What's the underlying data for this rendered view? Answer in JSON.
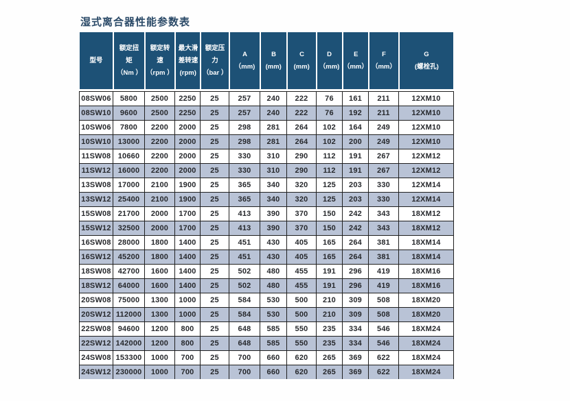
{
  "title": "湿式离合器性能参数表",
  "colors": {
    "header_bg": "#1d5176",
    "row_alt_bg": "#b9c3d6",
    "border": "#1f1f1f",
    "title_text": "#2b4a68",
    "header_text": "#ffffff"
  },
  "table": {
    "columns": [
      {
        "key": "model",
        "lines": [
          "型号"
        ]
      },
      {
        "key": "rated-torque",
        "lines": [
          "额定扭",
          "矩",
          "（Nm ）"
        ]
      },
      {
        "key": "rated-speed",
        "lines": [
          "额定转",
          "速",
          "（rpm ）"
        ]
      },
      {
        "key": "max-slip-speed",
        "lines": [
          "最大滑",
          "差转速",
          "(rpm)"
        ]
      },
      {
        "key": "rated-pressure",
        "lines": [
          "额定压",
          "力",
          "（bar ）"
        ]
      },
      {
        "key": "dim-a",
        "lines": [
          "A",
          "（mm)"
        ]
      },
      {
        "key": "dim-b",
        "lines": [
          "B",
          "(mm)"
        ]
      },
      {
        "key": "dim-c",
        "lines": [
          "C",
          "(mm)"
        ]
      },
      {
        "key": "dim-d",
        "lines": [
          "D",
          "（mm)"
        ]
      },
      {
        "key": "dim-e",
        "lines": [
          "E",
          "（mm）"
        ]
      },
      {
        "key": "dim-f",
        "lines": [
          "F",
          "（mm）"
        ]
      },
      {
        "key": "dim-g",
        "lines": [
          "G",
          "(螺栓孔)"
        ]
      }
    ],
    "rows": [
      [
        "08SW06",
        "5800",
        "2500",
        "2250",
        "25",
        "257",
        "240",
        "222",
        "76",
        "161",
        "211",
        "12XM10"
      ],
      [
        "08SW10",
        "9600",
        "2500",
        "2250",
        "25",
        "257",
        "240",
        "222",
        "76",
        "192",
        "211",
        "12XM10"
      ],
      [
        "10SW06",
        "7800",
        "2200",
        "2000",
        "25",
        "298",
        "281",
        "264",
        "102",
        "164",
        "249",
        "12XM10"
      ],
      [
        "10SW10",
        "13000",
        "2200",
        "2000",
        "25",
        "298",
        "281",
        "264",
        "102",
        "200",
        "249",
        "12XM10"
      ],
      [
        "11SW08",
        "10660",
        "2200",
        "2000",
        "25",
        "330",
        "310",
        "290",
        "112",
        "191",
        "267",
        "12XM12"
      ],
      [
        "11SW12",
        "16000",
        "2200",
        "2000",
        "25",
        "330",
        "310",
        "290",
        "112",
        "191",
        "267",
        "12XM12"
      ],
      [
        "13SW08",
        "17000",
        "2100",
        "1900",
        "25",
        "365",
        "340",
        "320",
        "125",
        "203",
        "330",
        "12XM14"
      ],
      [
        "13SW12",
        "25400",
        "2100",
        "1900",
        "25",
        "365",
        "340",
        "320",
        "125",
        "203",
        "330",
        "12XM14"
      ],
      [
        "15SW08",
        "21700",
        "2000",
        "1700",
        "25",
        "413",
        "390",
        "370",
        "150",
        "242",
        "343",
        "18XM12"
      ],
      [
        "15SW12",
        "32500",
        "2000",
        "1700",
        "25",
        "413",
        "390",
        "370",
        "150",
        "242",
        "343",
        "18XM12"
      ],
      [
        "16SW08",
        "28000",
        "1800",
        "1400",
        "25",
        "451",
        "430",
        "405",
        "165",
        "264",
        "381",
        "18XM14"
      ],
      [
        "16SW12",
        "45200",
        "1800",
        "1400",
        "25",
        "451",
        "430",
        "405",
        "165",
        "264",
        "381",
        "18XM14"
      ],
      [
        "18SW08",
        "42700",
        "1600",
        "1400",
        "25",
        "502",
        "480",
        "455",
        "191",
        "296",
        "419",
        "18XM16"
      ],
      [
        "18SW12",
        "64000",
        "1600",
        "1400",
        "25",
        "502",
        "480",
        "455",
        "191",
        "296",
        "419",
        "18XM16"
      ],
      [
        "20SW08",
        "75000",
        "1300",
        "1000",
        "25",
        "584",
        "530",
        "500",
        "210",
        "309",
        "508",
        "18XM20"
      ],
      [
        "20SW12",
        "112000",
        "1300",
        "1000",
        "25",
        "584",
        "530",
        "500",
        "210",
        "309",
        "508",
        "18XM20"
      ],
      [
        "22SW08",
        "94600",
        "1200",
        "800",
        "25",
        "648",
        "585",
        "550",
        "235",
        "334",
        "546",
        "18XM24"
      ],
      [
        "22SW12",
        "142000",
        "1200",
        "800",
        "25",
        "648",
        "585",
        "550",
        "235",
        "334",
        "546",
        "18XM24"
      ],
      [
        "24SW08",
        "153300",
        "1000",
        "700",
        "25",
        "700",
        "660",
        "620",
        "265",
        "369",
        "622",
        "18XM24"
      ],
      [
        "24SW12",
        "230000",
        "1000",
        "700",
        "25",
        "700",
        "660",
        "620",
        "265",
        "369",
        "622",
        "18XM24"
      ]
    ]
  }
}
